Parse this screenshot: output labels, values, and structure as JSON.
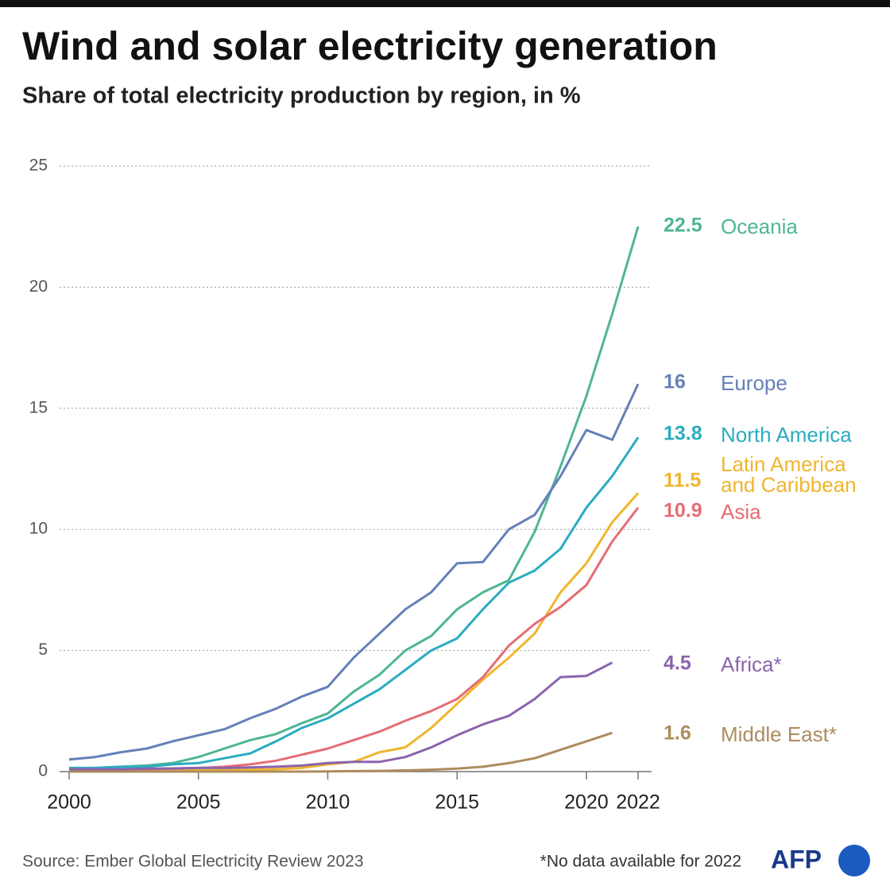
{
  "chart_data": {
    "type": "line",
    "title": "Wind and solar electricity generation",
    "subtitle": "Share of total electricity production by region, in %",
    "source": "Source: Ember Global Electricity Review 2023",
    "note": "*No data available for 2022",
    "logo": "AFP",
    "x": [
      2000,
      2001,
      2002,
      2003,
      2004,
      2005,
      2006,
      2007,
      2008,
      2009,
      2010,
      2011,
      2012,
      2013,
      2014,
      2015,
      2016,
      2017,
      2018,
      2019,
      2020,
      2021,
      2022
    ],
    "xlim": [
      2000,
      2022
    ],
    "xticks": [
      2000,
      2005,
      2010,
      2015,
      2020,
      2022
    ],
    "ylim": [
      0,
      25
    ],
    "yticks": [
      0,
      5,
      10,
      15,
      20,
      25
    ],
    "grid": true,
    "series": [
      {
        "name": "Oceania",
        "color": "#4fb594",
        "values": [
          0.1,
          0.15,
          0.2,
          0.25,
          0.35,
          0.6,
          0.95,
          1.3,
          1.55,
          2.0,
          2.4,
          3.3,
          4.0,
          5.0,
          5.6,
          6.7,
          7.4,
          7.9,
          9.9,
          12.6,
          15.5,
          18.9,
          22.5
        ]
      },
      {
        "name": "Europe",
        "color": "#6580b8",
        "values": [
          0.5,
          0.6,
          0.8,
          0.95,
          1.25,
          1.5,
          1.75,
          2.2,
          2.6,
          3.1,
          3.5,
          4.7,
          5.7,
          6.7,
          7.4,
          8.6,
          8.65,
          10.0,
          10.6,
          12.2,
          14.1,
          13.7,
          16
        ]
      },
      {
        "name": "North America",
        "color": "#2aacbf",
        "values": [
          0.15,
          0.15,
          0.2,
          0.2,
          0.3,
          0.35,
          0.55,
          0.75,
          1.25,
          1.8,
          2.2,
          2.8,
          3.4,
          4.2,
          5.0,
          5.5,
          6.7,
          7.8,
          8.3,
          9.2,
          10.9,
          12.2,
          13.8
        ]
      },
      {
        "name": "Latin America and Caribbean",
        "color": "#f0b52e",
        "values": [
          0.05,
          0.05,
          0.05,
          0.05,
          0.05,
          0.05,
          0.07,
          0.08,
          0.1,
          0.15,
          0.3,
          0.4,
          0.8,
          1.0,
          1.8,
          2.8,
          3.8,
          4.7,
          5.7,
          7.4,
          8.6,
          10.3,
          11.5
        ]
      },
      {
        "name": "Asia",
        "color": "#e56d74",
        "values": [
          0.05,
          0.05,
          0.07,
          0.1,
          0.12,
          0.15,
          0.2,
          0.3,
          0.45,
          0.7,
          0.95,
          1.3,
          1.65,
          2.1,
          2.5,
          3.0,
          3.9,
          5.2,
          6.1,
          6.8,
          7.7,
          9.5,
          10.9
        ]
      },
      {
        "name": "Africa*",
        "color": "#8a64ad",
        "values": [
          0.1,
          0.1,
          0.1,
          0.12,
          0.13,
          0.15,
          0.15,
          0.17,
          0.2,
          0.25,
          0.35,
          0.4,
          0.4,
          0.6,
          1.0,
          1.5,
          1.95,
          2.3,
          3.0,
          3.9,
          3.95,
          4.5,
          null
        ]
      },
      {
        "name": "Middle East*",
        "color": "#ad8c5e",
        "values": [
          0,
          0,
          0,
          0,
          0,
          0,
          0,
          0,
          0,
          0,
          0.01,
          0.02,
          0.03,
          0.05,
          0.08,
          0.12,
          0.2,
          0.35,
          0.55,
          0.9,
          1.25,
          1.6,
          null
        ]
      }
    ]
  }
}
